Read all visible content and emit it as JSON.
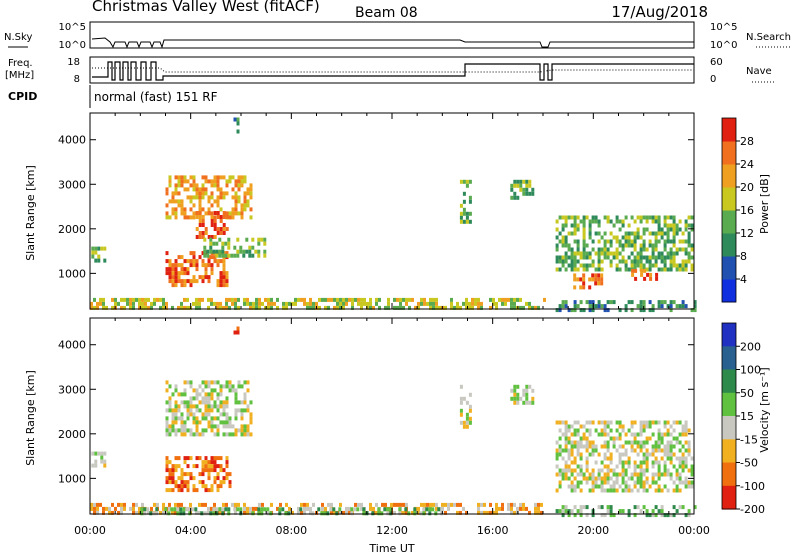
{
  "header": {
    "title": "Christmas Valley West (fitACF)",
    "beam": "Beam 08",
    "date": "17/Aug/2018"
  },
  "nsky_panel": {
    "left_label": "N.Sky",
    "right_label": "N.Search",
    "left_ticks": [
      "10^5",
      "10^0"
    ],
    "right_ticks": [
      "10^5",
      "10^0"
    ]
  },
  "freq_panel": {
    "left_label_line1": "Freq.",
    "left_label_line2": "[MHz]",
    "right_label": "Nave",
    "left_ticks": [
      "18",
      "8"
    ],
    "right_ticks": [
      "60",
      "0"
    ]
  },
  "cpid": {
    "label": "CPID",
    "text": "normal (fast) 151 RF"
  },
  "chart_data": [
    {
      "type": "heatmap",
      "panel": "power",
      "ylabel": "Slant Range [km]",
      "yticks": [
        1000,
        2000,
        3000,
        4000
      ],
      "ylim": [
        200,
        4600
      ],
      "xlim": [
        0,
        24
      ],
      "colorbar": {
        "label": "Power [dB]",
        "ticks": [
          "4",
          "8",
          "12",
          "16",
          "20",
          "24",
          "28"
        ],
        "colors": [
          "#1030e0",
          "#2050b0",
          "#2e8a5a",
          "#5aaa50",
          "#c8c820",
          "#f0a020",
          "#f07020",
          "#e02010"
        ]
      },
      "echo_regions": [
        {
          "t0": 0.05,
          "t1": 0.55,
          "r0": 1300,
          "r1": 1600,
          "level": 3
        },
        {
          "t0": 3.0,
          "t1": 6.4,
          "r0": 2300,
          "r1": 3200,
          "level": 5
        },
        {
          "t0": 4.2,
          "t1": 5.4,
          "r0": 1800,
          "r1": 2400,
          "level": 6
        },
        {
          "t0": 3.0,
          "t1": 5.5,
          "r0": 700,
          "r1": 1500,
          "level": 6
        },
        {
          "t0": 4.5,
          "t1": 6.9,
          "r0": 1400,
          "r1": 1800,
          "level": 3
        },
        {
          "t0": 5.7,
          "t1": 5.9,
          "r0": 4200,
          "r1": 4500,
          "level": 2
        },
        {
          "t0": 14.7,
          "t1": 15.1,
          "r0": 2200,
          "r1": 3100,
          "level": 3
        },
        {
          "t0": 16.7,
          "t1": 17.6,
          "r0": 2700,
          "r1": 3100,
          "level": 3
        },
        {
          "t0": 18.5,
          "t1": 23.9,
          "r0": 1100,
          "r1": 2300,
          "level": 3
        },
        {
          "t0": 19.2,
          "t1": 20.3,
          "r0": 650,
          "r1": 1000,
          "level": 6
        },
        {
          "t0": 21.5,
          "t1": 22.5,
          "r0": 850,
          "r1": 1100,
          "level": 6
        },
        {
          "t0": 0.0,
          "t1": 18.1,
          "r0": 200,
          "r1": 450,
          "level": 4
        },
        {
          "t0": 18.5,
          "t1": 24.0,
          "r0": 200,
          "r1": 400,
          "level": 2
        }
      ]
    },
    {
      "type": "heatmap",
      "panel": "velocity",
      "ylabel": "Slant Range [km]",
      "xlabel": "Time UT",
      "xticks": [
        "00:00",
        "04:00",
        "08:00",
        "12:00",
        "16:00",
        "20:00",
        "00:00"
      ],
      "yticks": [
        1000,
        2000,
        3000,
        4000
      ],
      "ylim": [
        200,
        4600
      ],
      "xlim": [
        0,
        24
      ],
      "colorbar": {
        "label": "Velocity [m s⁻¹]",
        "ticks": [
          "200",
          "100",
          "50",
          "15",
          "-15",
          "-50",
          "-100",
          "-200"
        ],
        "colors": [
          "#2030c0",
          "#2a6090",
          "#2e8a4a",
          "#60c040",
          "#c8c8c0",
          "#f0b020",
          "#f07010",
          "#e02010"
        ]
      },
      "echo_regions": [
        {
          "t0": 0.05,
          "t1": 0.55,
          "r0": 1300,
          "r1": 1600,
          "level": 4
        },
        {
          "t0": 3.0,
          "t1": 6.4,
          "r0": 2000,
          "r1": 3200,
          "level": 4
        },
        {
          "t0": 3.0,
          "t1": 5.6,
          "r0": 700,
          "r1": 1500,
          "level": 6
        },
        {
          "t0": 5.7,
          "t1": 5.9,
          "r0": 4200,
          "r1": 4500,
          "level": 7
        },
        {
          "t0": 14.7,
          "t1": 15.1,
          "r0": 2200,
          "r1": 3100,
          "level": 4
        },
        {
          "t0": 16.7,
          "t1": 17.6,
          "r0": 2700,
          "r1": 3100,
          "level": 4
        },
        {
          "t0": 18.5,
          "t1": 23.9,
          "r0": 700,
          "r1": 2300,
          "level": 4
        },
        {
          "t0": 0.0,
          "t1": 18.1,
          "r0": 200,
          "r1": 450,
          "level": 5
        },
        {
          "t0": 2.0,
          "t1": 14.0,
          "r0": 200,
          "r1": 350,
          "level": 3
        },
        {
          "t0": 18.5,
          "t1": 24.0,
          "r0": 200,
          "r1": 400,
          "level": 3
        }
      ]
    }
  ]
}
